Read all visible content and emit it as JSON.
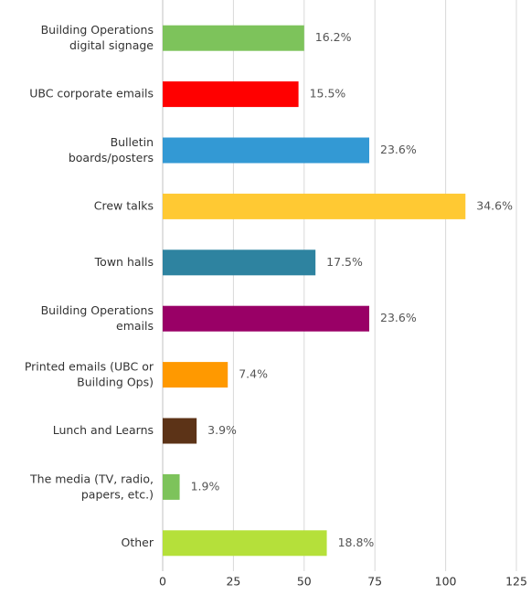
{
  "chart_data": {
    "type": "bar",
    "orientation": "horizontal",
    "categories": [
      "Building Operations\ndigital signage",
      "UBC corporate emails",
      "Bulletin\nboards/posters",
      "Crew talks",
      "Town halls",
      "Building Operations\nemails",
      "Printed emails (UBC or\nBuilding Ops)",
      "Lunch and Learns",
      "The media (TV, radio,\npapers, etc.)",
      "Other"
    ],
    "values": [
      50,
      48,
      73,
      107,
      54,
      73,
      23,
      12,
      6,
      58
    ],
    "value_labels": [
      "16.2%",
      "15.5%",
      "23.6%",
      "34.6%",
      "17.5%",
      "23.6%",
      "7.4%",
      "3.9%",
      "1.9%",
      "18.8%"
    ],
    "colors": [
      "#7dc35b",
      "#ff0000",
      "#3399d4",
      "#ffc933",
      "#2e83a0",
      "#990066",
      "#ff9900",
      "#5c3317",
      "#7dc35b",
      "#b5e03a"
    ],
    "xlim": [
      0,
      125
    ],
    "xticks": [
      0,
      25,
      50,
      75,
      100,
      125
    ],
    "grid": true
  }
}
